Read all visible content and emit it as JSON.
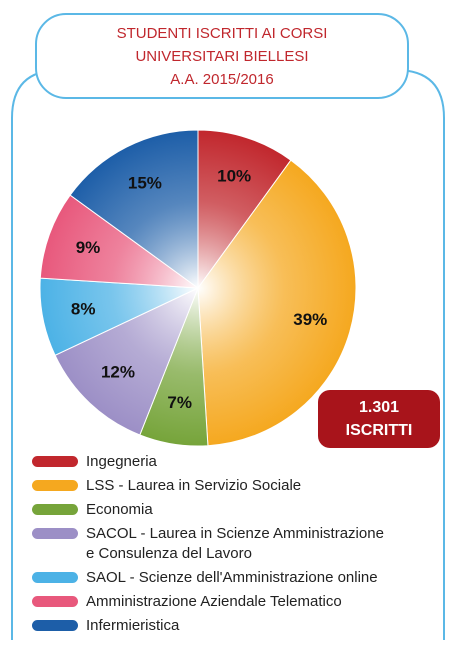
{
  "chart_data": {
    "type": "pie",
    "title_lines": [
      "STUDENTI ISCRITTI AI CORSI",
      "UNIVERSITARI BIELLESI",
      "A.A. 2015/2016"
    ],
    "badge": [
      "1.301",
      "ISCRITTI"
    ],
    "series": [
      {
        "name": "Ingegneria",
        "color": "#c1272d",
        "values": [
          10
        ],
        "value_labels": [
          "10%"
        ]
      },
      {
        "name": "LSS - Laurea in Servizio Sociale",
        "color": "#f5a81f",
        "values": [
          39
        ],
        "value_labels": [
          "39%"
        ]
      },
      {
        "name": "Economia",
        "color": "#76a43a",
        "values": [
          7
        ],
        "value_labels": [
          "7%"
        ]
      },
      {
        "name": "SACOL - Laurea in Scienze Amministrazione\ne Consulenza del Lavoro",
        "color": "#9c8fc6",
        "values": [
          12
        ],
        "value_labels": [
          "12%"
        ]
      },
      {
        "name": "SAOL - Scienze dell'Amministrazione online",
        "color": "#4cb2e6",
        "values": [
          8
        ],
        "value_labels": [
          "8%"
        ]
      },
      {
        "name": "Amministrazione Aziendale Telematico",
        "color": "#e8587c",
        "values": [
          9
        ],
        "value_labels": [
          "9%"
        ]
      },
      {
        "name": "Infermieristica",
        "color": "#1d5ea8",
        "values": [
          15
        ],
        "value_labels": [
          "15%"
        ]
      }
    ]
  }
}
